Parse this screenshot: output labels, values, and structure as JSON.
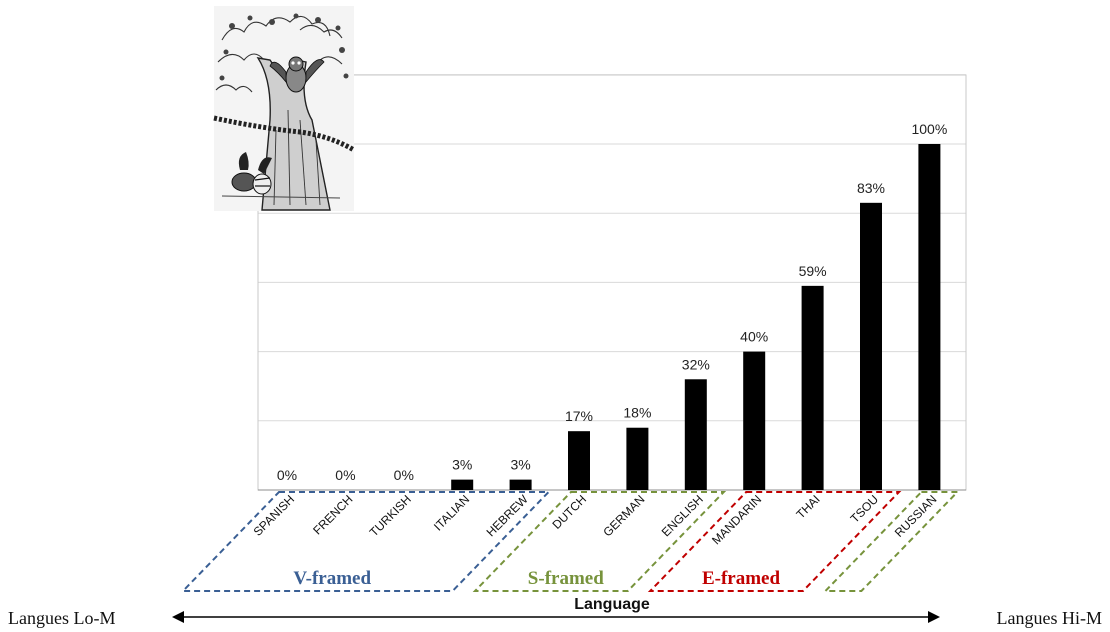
{
  "chart_data": {
    "type": "bar",
    "categories": [
      "SPANISH",
      "FRENCH",
      "TURKISH",
      "ITALIAN",
      "HEBREW",
      "DUTCH",
      "GERMAN",
      "ENGLISH",
      "MANDARIN",
      "THAI",
      "TSOU",
      "RUSSIAN"
    ],
    "values": [
      0,
      0,
      0,
      3,
      3,
      17,
      18,
      32,
      40,
      59,
      83,
      100
    ],
    "value_labels": [
      "0%",
      "0%",
      "0%",
      "3%",
      "3%",
      "17%",
      "18%",
      "32%",
      "40%",
      "59%",
      "83%",
      "100%"
    ],
    "title": "",
    "xlabel": "Language",
    "ylabel": "",
    "ylim": [
      0,
      120
    ],
    "grid": true,
    "bar_color": "#000000",
    "groups": [
      {
        "label": "V-framed",
        "members": [
          "SPANISH",
          "FRENCH",
          "TURKISH",
          "ITALIAN",
          "HEBREW"
        ],
        "color": "#3a5f94"
      },
      {
        "label": "S-framed",
        "members": [
          "DUTCH",
          "GERMAN",
          "ENGLISH"
        ],
        "color": "#77933c"
      },
      {
        "label": "E-framed",
        "members": [
          "MANDARIN",
          "THAI",
          "TSOU"
        ],
        "color": "#c00000"
      },
      {
        "label": "",
        "members": [
          "RUSSIAN"
        ],
        "color": "#77933c"
      }
    ]
  },
  "scale_axis": {
    "left_label": "Langues Lo-M",
    "right_label": "Langues Hi-M"
  },
  "illustration": {
    "icon": "owl-tree-engraving-icon"
  }
}
